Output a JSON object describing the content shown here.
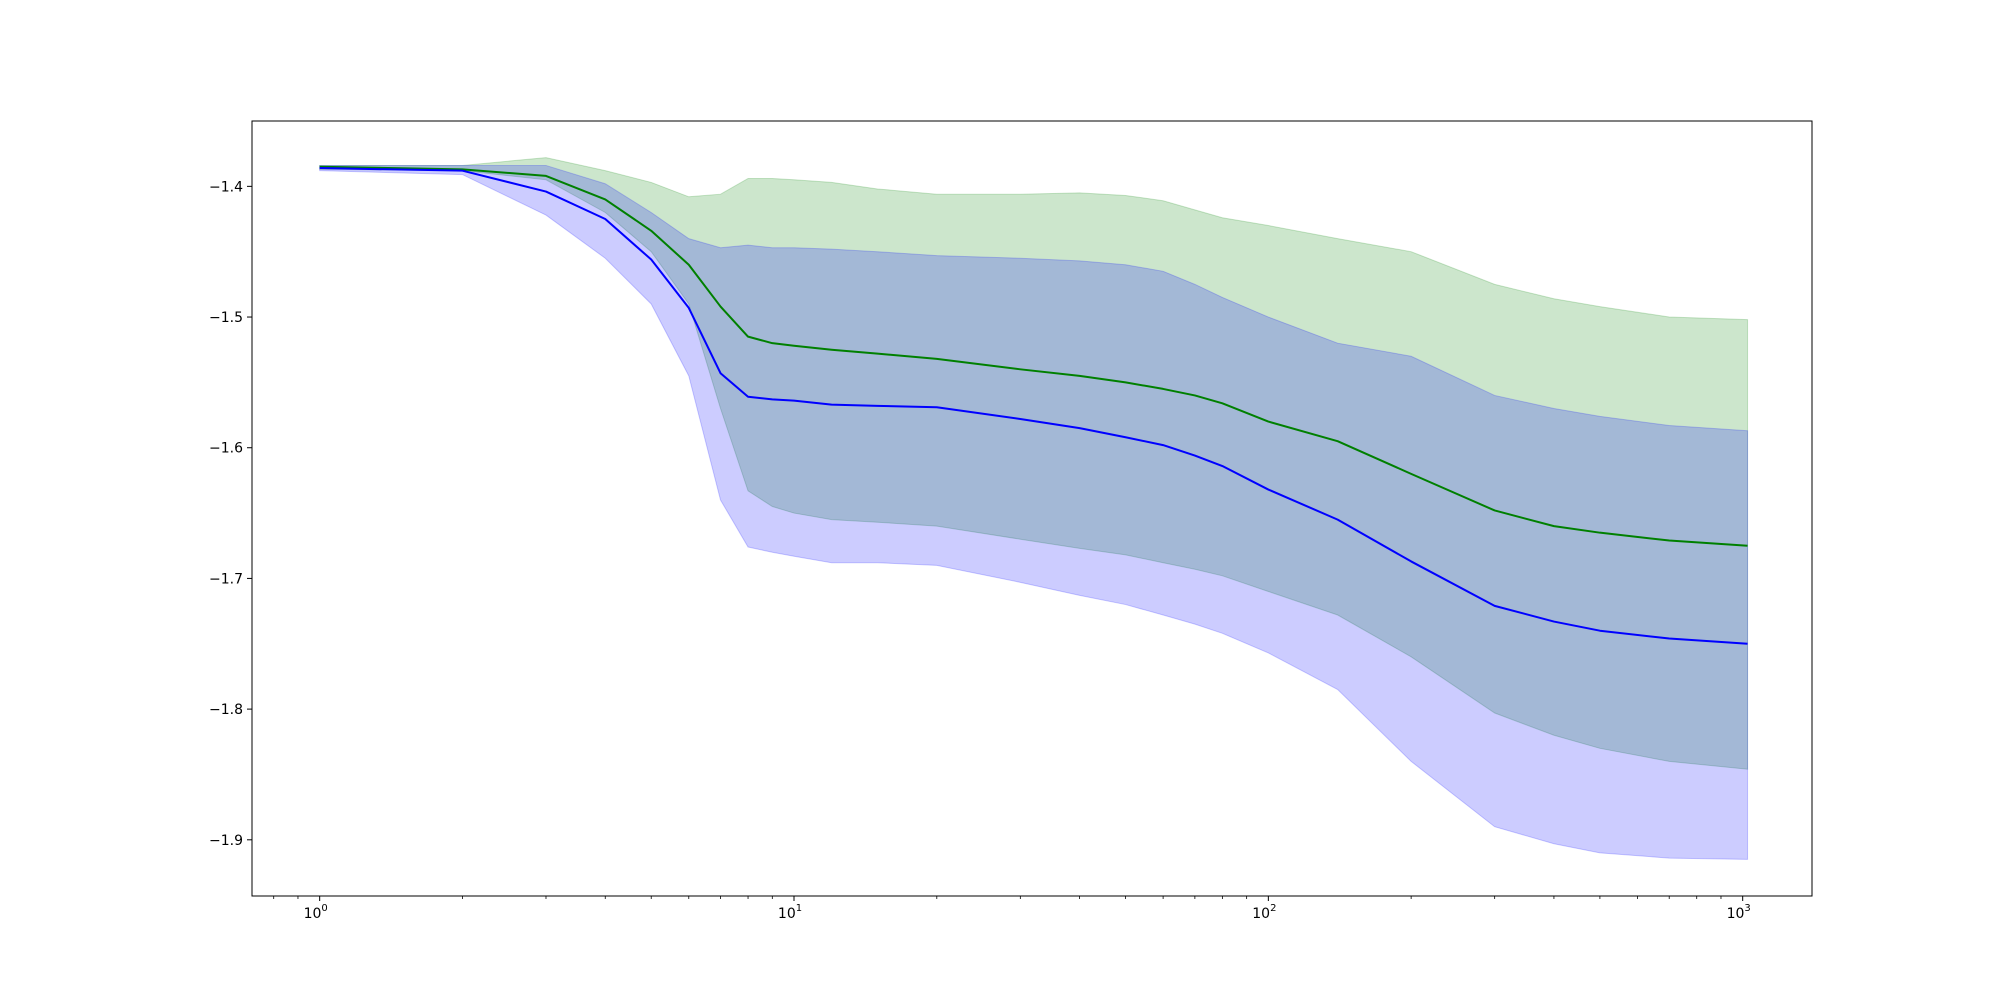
{
  "chart_data": {
    "type": "line",
    "title": "",
    "xlabel": "",
    "ylabel": "",
    "xscale": "log",
    "xlim": [
      0.72,
      1400
    ],
    "ylim": [
      -1.943,
      -1.35
    ],
    "grid": false,
    "legend": "none",
    "x_ticks": [
      {
        "value": 1,
        "base": "10",
        "exp": "0"
      },
      {
        "value": 10,
        "base": "10",
        "exp": "1"
      },
      {
        "value": 100,
        "base": "10",
        "exp": "2"
      },
      {
        "value": 1000,
        "base": "10",
        "exp": "3"
      }
    ],
    "y_ticks": [
      {
        "value": -1.4,
        "label": "−1.4"
      },
      {
        "value": -1.5,
        "label": "−1.5"
      },
      {
        "value": -1.6,
        "label": "−1.6"
      },
      {
        "value": -1.7,
        "label": "−1.7"
      },
      {
        "value": -1.8,
        "label": "−1.8"
      },
      {
        "value": -1.9,
        "label": "−1.9"
      }
    ],
    "series": [
      {
        "color": "#008000",
        "band_color": "#008000",
        "band_opacity": 0.2,
        "x": [
          1,
          2,
          3,
          4,
          5,
          6,
          7,
          8,
          9,
          10,
          12,
          15,
          20,
          30,
          40,
          50,
          60,
          70,
          80,
          100,
          140,
          200,
          300,
          400,
          500,
          700,
          1024
        ],
        "mean": [
          -1.385,
          -1.387,
          -1.392,
          -1.41,
          -1.434,
          -1.46,
          -1.492,
          -1.515,
          -1.52,
          -1.522,
          -1.525,
          -1.528,
          -1.532,
          -1.54,
          -1.545,
          -1.55,
          -1.555,
          -1.56,
          -1.566,
          -1.58,
          -1.595,
          -1.62,
          -1.648,
          -1.66,
          -1.665,
          -1.671,
          -1.675
        ],
        "upper": [
          -1.384,
          -1.384,
          -1.378,
          -1.388,
          -1.397,
          -1.408,
          -1.406,
          -1.394,
          -1.394,
          -1.395,
          -1.397,
          -1.402,
          -1.406,
          -1.406,
          -1.405,
          -1.407,
          -1.411,
          -1.418,
          -1.424,
          -1.43,
          -1.44,
          -1.45,
          -1.475,
          -1.486,
          -1.492,
          -1.5,
          -1.502
        ],
        "lower": [
          -1.387,
          -1.388,
          -1.395,
          -1.42,
          -1.45,
          -1.49,
          -1.57,
          -1.633,
          -1.645,
          -1.65,
          -1.655,
          -1.657,
          -1.66,
          -1.67,
          -1.677,
          -1.682,
          -1.688,
          -1.693,
          -1.698,
          -1.71,
          -1.728,
          -1.76,
          -1.803,
          -1.82,
          -1.83,
          -1.84,
          -1.846
        ]
      },
      {
        "color": "#0000ff",
        "band_color": "#0000ff",
        "band_opacity": 0.2,
        "x": [
          1,
          2,
          3,
          4,
          5,
          6,
          7,
          8,
          9,
          10,
          12,
          15,
          20,
          30,
          40,
          50,
          60,
          70,
          80,
          100,
          140,
          200,
          300,
          400,
          500,
          700,
          1024
        ],
        "mean": [
          -1.386,
          -1.388,
          -1.404,
          -1.425,
          -1.456,
          -1.493,
          -1.543,
          -1.561,
          -1.563,
          -1.564,
          -1.567,
          -1.568,
          -1.569,
          -1.578,
          -1.585,
          -1.592,
          -1.598,
          -1.606,
          -1.614,
          -1.632,
          -1.655,
          -1.687,
          -1.721,
          -1.733,
          -1.74,
          -1.746,
          -1.75
        ],
        "upper": [
          -1.384,
          -1.384,
          -1.384,
          -1.398,
          -1.42,
          -1.44,
          -1.447,
          -1.445,
          -1.447,
          -1.447,
          -1.448,
          -1.45,
          -1.453,
          -1.455,
          -1.457,
          -1.46,
          -1.465,
          -1.475,
          -1.485,
          -1.5,
          -1.52,
          -1.53,
          -1.56,
          -1.57,
          -1.576,
          -1.583,
          -1.587
        ],
        "lower": [
          -1.388,
          -1.391,
          -1.422,
          -1.455,
          -1.49,
          -1.545,
          -1.64,
          -1.676,
          -1.68,
          -1.683,
          -1.688,
          -1.688,
          -1.69,
          -1.703,
          -1.713,
          -1.72,
          -1.728,
          -1.735,
          -1.742,
          -1.757,
          -1.785,
          -1.84,
          -1.89,
          -1.903,
          -1.91,
          -1.914,
          -1.915
        ]
      }
    ]
  }
}
